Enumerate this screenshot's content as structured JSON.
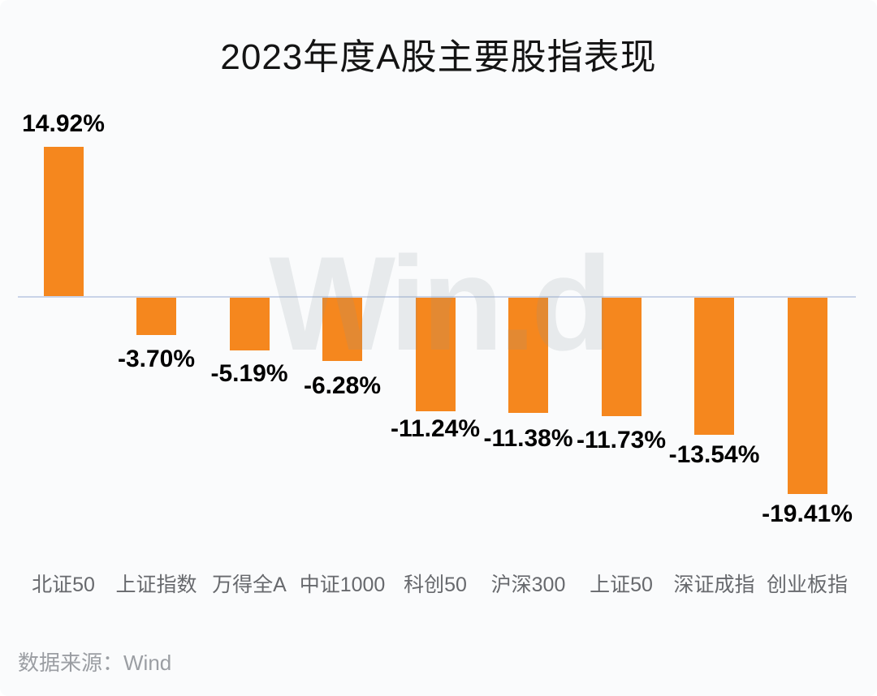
{
  "chart_data": {
    "type": "bar",
    "title": "2023年度A股主要股指表现",
    "categories": [
      "北证50",
      "上证指数",
      "万得全A",
      "中证1000",
      "科创50",
      "沪深300",
      "上证50",
      "深证成指",
      "创业板指"
    ],
    "values": [
      14.92,
      -3.7,
      -5.19,
      -6.28,
      -11.24,
      -11.38,
      -11.73,
      -13.54,
      -19.41
    ],
    "value_labels": [
      "14.92%",
      "-3.70%",
      "-5.19%",
      "-6.28%",
      "-11.24%",
      "-11.38%",
      "-11.73%",
      "-13.54%",
      "-19.41%"
    ],
    "xlabel": "",
    "ylabel": "",
    "ylim": [
      -19.41,
      14.92
    ],
    "grid": false,
    "legend": "none",
    "value_label_position": "outside-end",
    "bar_color": "#F5871E",
    "zero_line_color": "#C9D3E8",
    "background_color": "#FAFBFC"
  },
  "watermark": "Win.d",
  "source": "数据来源：Wind"
}
